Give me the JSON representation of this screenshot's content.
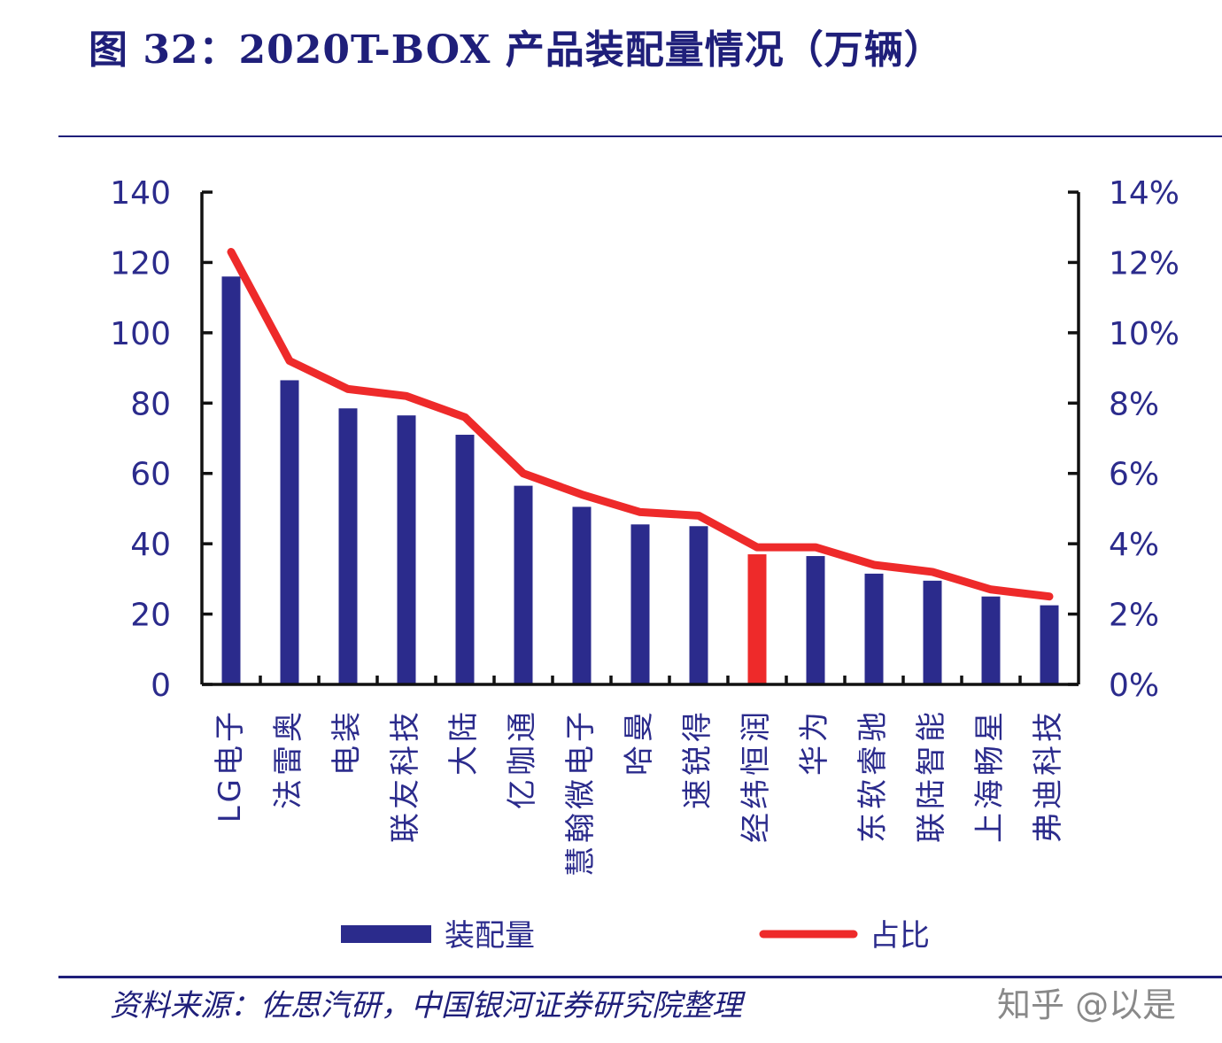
{
  "title": "图 32：2020T-BOX 产品装配量情况（万辆）",
  "source": "资料来源：佐思汽研，中国银河证券研究院整理",
  "watermark": "知乎 @以是",
  "colors": {
    "bar": "#2b2b8c",
    "highlight_bar": "#ee2a2a",
    "line": "#ee2a2a",
    "axis_text": "#2b2b8c",
    "rule": "#1f1f7a"
  },
  "chart_data": {
    "type": "bar",
    "categories": [
      "LG电子",
      "法雷奥",
      "电装",
      "联友科技",
      "大陆",
      "亿咖通",
      "慧翰微电子",
      "哈曼",
      "速锐得",
      "经纬恒润",
      "华为",
      "东软睿驰",
      "联陆智能",
      "上海畅星",
      "弗迪科技"
    ],
    "highlight_category": "经纬恒润",
    "series": [
      {
        "name": "装配量",
        "type": "bar",
        "axis": "left",
        "values": [
          116,
          86.5,
          78.5,
          76.5,
          71,
          56.5,
          50.5,
          45.5,
          45,
          37,
          36.5,
          31.5,
          29.5,
          25,
          22.5
        ]
      },
      {
        "name": "占比",
        "type": "line",
        "axis": "right",
        "values": [
          0.123,
          0.092,
          0.084,
          0.082,
          0.076,
          0.06,
          0.054,
          0.049,
          0.048,
          0.039,
          0.039,
          0.034,
          0.032,
          0.027,
          0.025
        ]
      }
    ],
    "left_axis": {
      "ylim": [
        0,
        140
      ],
      "ticks": [
        "0",
        "20",
        "40",
        "60",
        "80",
        "100",
        "120",
        "140"
      ]
    },
    "right_axis": {
      "ylim": [
        0,
        0.14
      ],
      "ticks": [
        "0%",
        "2%",
        "4%",
        "6%",
        "8%",
        "10%",
        "12%",
        "14%"
      ]
    },
    "legend": {
      "position": "bottom"
    },
    "grid": false
  }
}
